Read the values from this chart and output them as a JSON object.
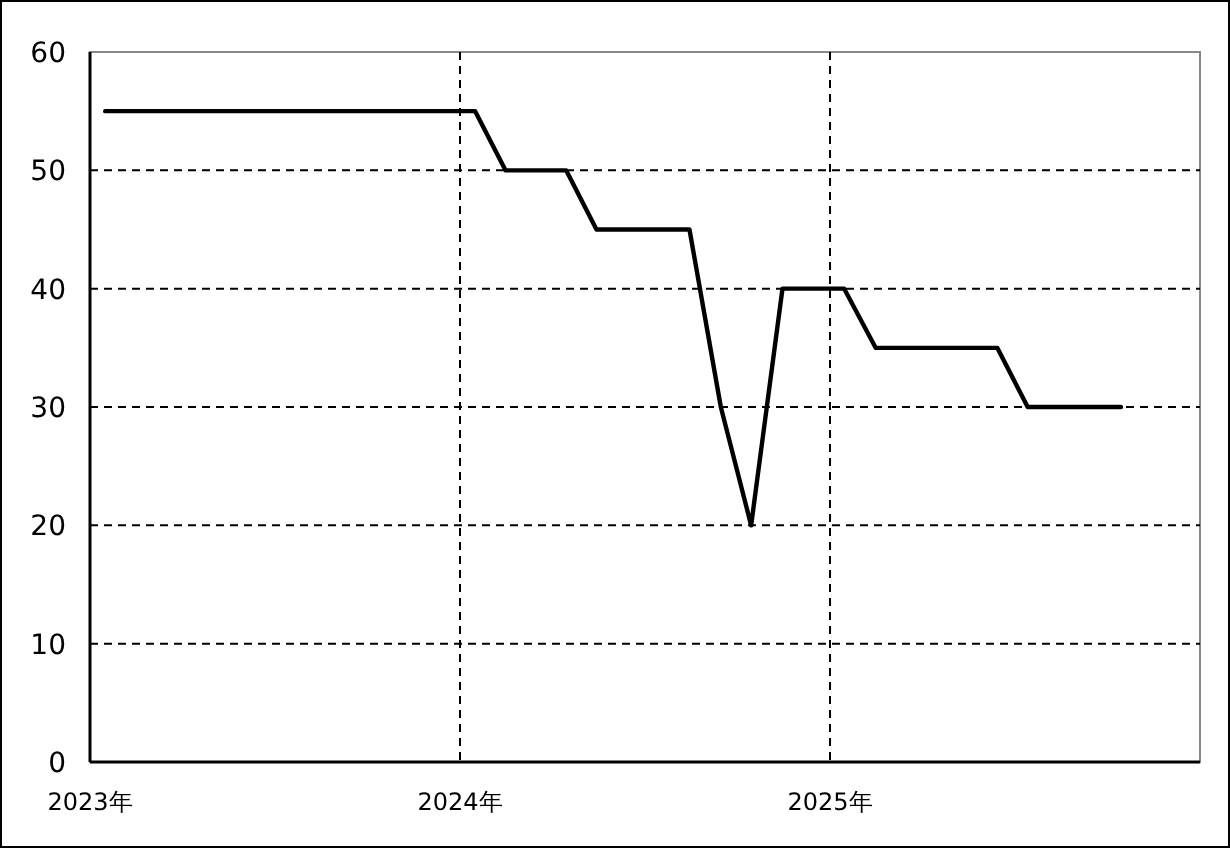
{
  "chart_data": {
    "type": "line",
    "x": [
      "2023-01-16",
      "2024-01-16",
      "2024-02-15",
      "2024-04-15",
      "2024-05-15",
      "2024-08-15",
      "2024-09-15",
      "2024-10-15",
      "2024-11-15",
      "2025-01-15",
      "2025-02-15",
      "2025-06-15",
      "2025-07-15",
      "2025-10-15"
    ],
    "series": [
      {
        "color": "#000000",
        "values": [
          55,
          55,
          50,
          50,
          45,
          45,
          30,
          20,
          40,
          40,
          35,
          35,
          30,
          30
        ]
      }
    ],
    "xlim": [
      "2023",
      "2026"
    ],
    "xticks": [
      {
        "value": "2023",
        "label": "2023年"
      },
      {
        "value": "2024",
        "label": "2024年"
      },
      {
        "value": "2025",
        "label": "2025年"
      }
    ],
    "ylim": [
      0,
      60
    ],
    "yticks": [
      0,
      10,
      20,
      30,
      40,
      50,
      60
    ],
    "grid": true,
    "line_style": "solid",
    "marker": "none"
  }
}
